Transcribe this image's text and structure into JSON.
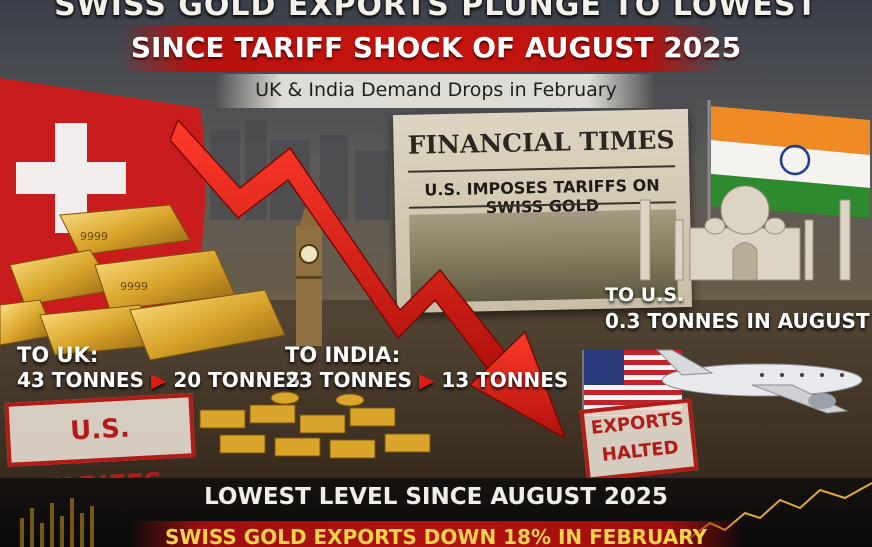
{
  "headline": {
    "line1": "SWISS GOLD EXPORTS PLUNGE TO LOWEST",
    "line2": "SINCE TARIFF SHOCK OF AUGUST 2025",
    "line3": "UK & India Demand Drops in February"
  },
  "newspaper": {
    "masthead": "FINANCIAL TIMES",
    "headline": "U.S. IMPOSES TARIFFS ON SWISS GOLD"
  },
  "uk": {
    "label": "TO UK:",
    "from": "43 TONNES",
    "to": "20 TONNES"
  },
  "india": {
    "label": "TO INDIA:",
    "from": "23 TONNES",
    "to": "13 TONNES"
  },
  "us": {
    "label": "TO U.S.",
    "value": "0.3 TONNES IN AUGUST"
  },
  "stamps": {
    "tariffs": "U.S. TARIFFS",
    "halted_line1": "EXPORTS",
    "halted_line2": "HALTED"
  },
  "bottom": {
    "lowest": "LOWEST  LEVEL SINCE AUGUST 2025",
    "down": "SWISS GOLD EXPORTS DOWN 18% IN FEBRUARY"
  },
  "arrow_glyph": "▶",
  "colors": {
    "accent_red": "#c8150f",
    "gold": "#d9a52b",
    "text_light": "#ffffff",
    "text_yellow": "#f5d34a"
  }
}
